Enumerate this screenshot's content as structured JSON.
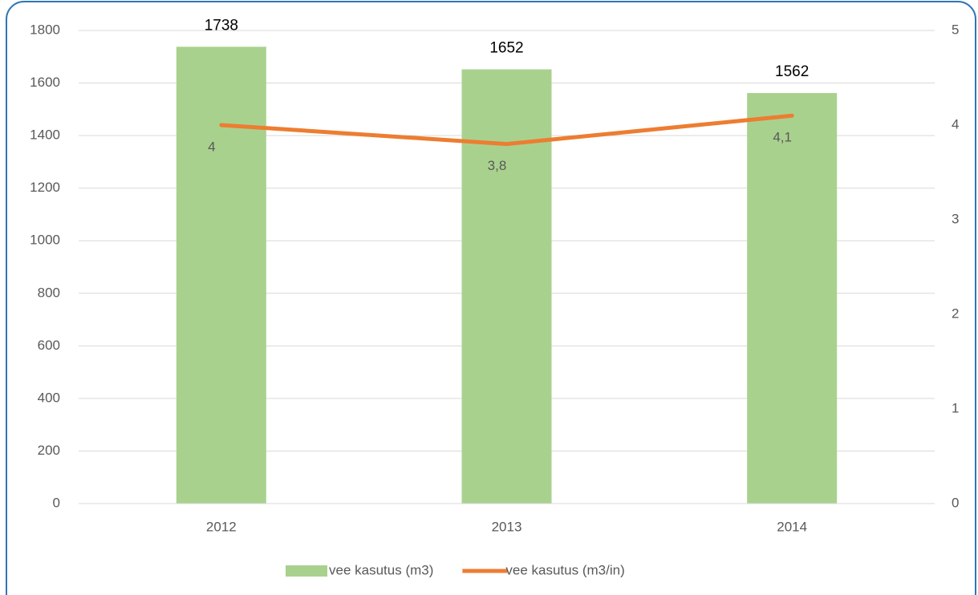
{
  "chart_data": {
    "type": "bar",
    "categories": [
      "2012",
      "2013",
      "2014"
    ],
    "series": [
      {
        "name": "vee kasutus (m3)",
        "type": "bar",
        "color": "#a9d18e",
        "values": [
          1738,
          1652,
          1562
        ]
      },
      {
        "name": "vee kasutus (m3/in)",
        "type": "line",
        "axis": "y2",
        "color": "#ed7d31",
        "values": [
          4,
          3.8,
          4.1
        ],
        "value_labels": [
          "4",
          "3,8",
          "4,1"
        ]
      }
    ],
    "ylim": [
      0,
      1800
    ],
    "yticks": [
      0,
      200,
      400,
      600,
      800,
      1000,
      1200,
      1400,
      1600,
      1800
    ],
    "y2lim": [
      0,
      5
    ],
    "y2ticks": [
      0,
      1,
      2,
      3,
      4,
      5
    ],
    "grid": true,
    "legend": "bottom"
  }
}
